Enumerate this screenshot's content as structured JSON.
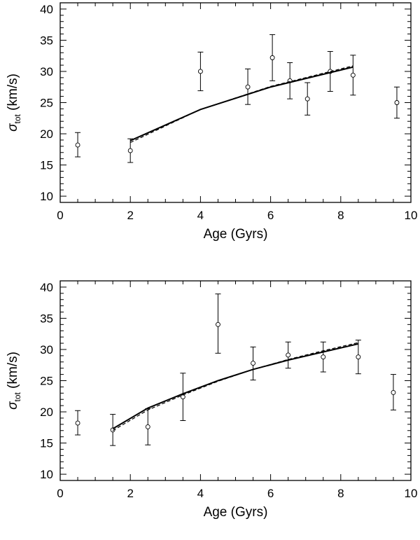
{
  "chart_data": [
    {
      "type": "scatter",
      "title": "",
      "xlabel": "Age (Gyrs)",
      "ylabel_symbol": "σ",
      "ylabel_subscript": "tot",
      "ylabel_unit": " (km/s)",
      "xlim": [
        0,
        10
      ],
      "ylim": [
        9,
        41
      ],
      "xticks": [
        0,
        2,
        4,
        6,
        8,
        10
      ],
      "yticks": [
        10,
        15,
        20,
        25,
        30,
        35,
        40
      ],
      "grid": false,
      "series": [
        {
          "kind": "errorbar",
          "marker": "open-circle",
          "points": [
            {
              "x": 0.5,
              "y": 18.2,
              "lo": 16.3,
              "hi": 20.2
            },
            {
              "x": 2.0,
              "y": 17.3,
              "lo": 15.4,
              "hi": 19.2
            },
            {
              "x": 4.0,
              "y": 30.0,
              "lo": 26.9,
              "hi": 33.1
            },
            {
              "x": 5.35,
              "y": 27.5,
              "lo": 24.7,
              "hi": 30.4
            },
            {
              "x": 6.05,
              "y": 32.2,
              "lo": 28.5,
              "hi": 35.9
            },
            {
              "x": 6.55,
              "y": 28.5,
              "lo": 25.6,
              "hi": 31.4
            },
            {
              "x": 7.05,
              "y": 25.6,
              "lo": 23.0,
              "hi": 28.2
            },
            {
              "x": 7.7,
              "y": 30.0,
              "lo": 26.8,
              "hi": 33.2
            },
            {
              "x": 8.35,
              "y": 29.4,
              "lo": 26.2,
              "hi": 32.6
            },
            {
              "x": 9.6,
              "y": 25.0,
              "lo": 22.5,
              "hi": 27.5
            }
          ]
        },
        {
          "kind": "line",
          "style": "solid",
          "x": [
            2.0,
            4.0,
            6.0,
            8.35
          ],
          "y": [
            18.9,
            23.9,
            27.5,
            30.7
          ]
        },
        {
          "kind": "line",
          "style": "dashed",
          "x": [
            2.0,
            4.0,
            6.0,
            8.35
          ],
          "y": [
            18.6,
            23.9,
            27.6,
            30.9
          ]
        }
      ]
    },
    {
      "type": "scatter",
      "title": "",
      "xlabel": "Age (Gyrs)",
      "ylabel_symbol": "σ",
      "ylabel_subscript": "tot",
      "ylabel_unit": " (km/s)",
      "xlim": [
        0,
        10
      ],
      "ylim": [
        9,
        41
      ],
      "xticks": [
        0,
        2,
        4,
        6,
        8,
        10
      ],
      "yticks": [
        10,
        15,
        20,
        25,
        30,
        35,
        40
      ],
      "grid": false,
      "series": [
        {
          "kind": "errorbar",
          "marker": "open-circle",
          "points": [
            {
              "x": 0.5,
              "y": 18.2,
              "lo": 16.3,
              "hi": 20.2
            },
            {
              "x": 1.5,
              "y": 17.1,
              "lo": 14.6,
              "hi": 19.6
            },
            {
              "x": 2.5,
              "y": 17.6,
              "lo": 14.7,
              "hi": 20.5
            },
            {
              "x": 3.5,
              "y": 22.4,
              "lo": 18.6,
              "hi": 26.2
            },
            {
              "x": 4.5,
              "y": 34.0,
              "lo": 29.4,
              "hi": 38.9
            },
            {
              "x": 5.5,
              "y": 27.8,
              "lo": 25.1,
              "hi": 30.4
            },
            {
              "x": 6.5,
              "y": 29.1,
              "lo": 27.0,
              "hi": 31.2
            },
            {
              "x": 7.5,
              "y": 28.8,
              "lo": 26.4,
              "hi": 31.2
            },
            {
              "x": 8.5,
              "y": 28.8,
              "lo": 26.1,
              "hi": 31.5
            },
            {
              "x": 9.5,
              "y": 23.1,
              "lo": 20.3,
              "hi": 26.0
            }
          ]
        },
        {
          "kind": "line",
          "style": "solid",
          "x": [
            1.5,
            2.5,
            3.5,
            4.5,
            5.5,
            6.5,
            7.5,
            8.5
          ],
          "y": [
            17.3,
            20.6,
            22.9,
            25.0,
            26.8,
            28.3,
            29.6,
            30.9
          ]
        },
        {
          "kind": "line",
          "style": "dashed",
          "x": [
            1.5,
            2.5,
            3.5,
            4.5,
            5.5,
            6.5,
            7.5,
            8.5
          ],
          "y": [
            17.0,
            20.3,
            22.7,
            24.9,
            26.8,
            28.4,
            29.8,
            31.1
          ]
        }
      ]
    }
  ]
}
